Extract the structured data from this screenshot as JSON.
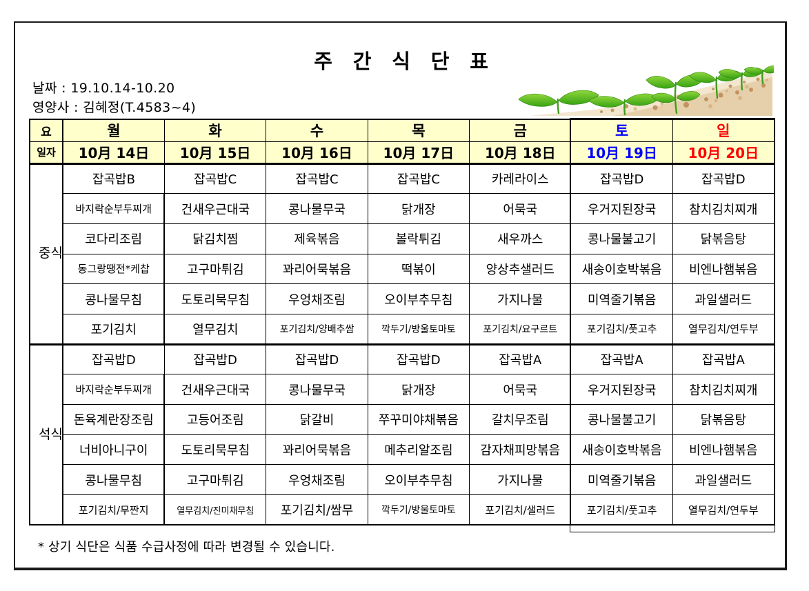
{
  "page": {
    "title": "주 간 식 단 표",
    "date_label": "날짜 : 19.10.14-10.20",
    "dietitian_label": "영양사 : 김혜정(T.4583~4)",
    "footer_note": "* 상기 식단은 식품 수급사정에 따라 변경될 수 있습니다."
  },
  "table": {
    "corner_day_label": "요",
    "corner_date_label": "일자",
    "lunch_label": "중식",
    "dinner_label": "석식",
    "days": [
      {
        "weekday": "월",
        "date": "10月 14日",
        "accent": "#000000",
        "lunch": [
          "잡곡밥B",
          "바지락순부두찌개",
          "코다리조림",
          "동그랑땡전*케찹",
          "콩나물무침",
          "포기김치"
        ],
        "dinner": [
          "잡곡밥D",
          "바지락순부두찌개",
          "돈육계란장조림",
          "너비아니구이",
          "콩나물무침",
          "포기김치/무짠지"
        ]
      },
      {
        "weekday": "화",
        "date": "10月 15日",
        "accent": "#000000",
        "lunch": [
          "잡곡밥C",
          "건새우근대국",
          "닭김치찜",
          "고구마튀김",
          "도토리묵무침",
          "열무김치"
        ],
        "dinner": [
          "잡곡밥D",
          "건새우근대국",
          "고등어조림",
          "도토리묵무침",
          "고구마튀김",
          "열무김치/진미채무침"
        ]
      },
      {
        "weekday": "수",
        "date": "10月 16日",
        "accent": "#000000",
        "lunch": [
          "잡곡밥C",
          "콩나물무국",
          "제육볶음",
          "꽈리어묵볶음",
          "우엉채조림",
          "포기김치/양배추쌈"
        ],
        "dinner": [
          "잡곡밥D",
          "콩나물무국",
          "닭갈비",
          "꽈리어묵볶음",
          "우엉채조림",
          "포기김치/쌈무"
        ]
      },
      {
        "weekday": "목",
        "date": "10月 17日",
        "accent": "#000000",
        "lunch": [
          "잡곡밥C",
          "닭개장",
          "볼락튀김",
          "떡볶이",
          "오이부추무침",
          "깍두기/방울토마토"
        ],
        "dinner": [
          "잡곡밥D",
          "닭개장",
          "쭈꾸미야채볶음",
          "메추리알조림",
          "오이부추무침",
          "깍두기/방울토마토"
        ]
      },
      {
        "weekday": "금",
        "date": "10月 18日",
        "accent": "#000000",
        "lunch": [
          "카레라이스",
          "어묵국",
          "새우까스",
          "양상추샐러드",
          "가지나물",
          "포기김치/요구르트"
        ],
        "dinner": [
          "잡곡밥A",
          "어묵국",
          "갈치무조림",
          "감자채피망볶음",
          "가지나물",
          "포기김치/샐러드"
        ]
      },
      {
        "weekday": "토",
        "date": "10月 19日",
        "accent": "#0000FF",
        "lunch": [
          "잡곡밥D",
          "우거지된장국",
          "콩나물불고기",
          "새송이호박볶음",
          "미역줄기볶음",
          "포기김치/풋고추"
        ],
        "dinner": [
          "잡곡밥A",
          "우거지된장국",
          "콩나물불고기",
          "새송이호박볶음",
          "미역줄기볶음",
          "포기김치/풋고추"
        ]
      },
      {
        "weekday": "일",
        "date": "10月 20日",
        "accent": "#FF0000",
        "lunch": [
          "잡곡밥D",
          "참치김치찌개",
          "닭볶음탕",
          "비엔나햄볶음",
          "과일샐러드",
          "열무김치/연두부"
        ],
        "dinner": [
          "잡곡밥A",
          "참치김치찌개",
          "닭볶음탕",
          "비엔나햄볶음",
          "과일샐러드",
          "열무김치/연두부"
        ]
      }
    ]
  },
  "colors": {
    "header_bg": "#FFFFCC",
    "weekday_default": "#000000",
    "saturday_accent": "#0000FF",
    "sunday_accent": "#FF0000",
    "table_border": "#000000",
    "leaf_green": "#4AAE1E",
    "soil_tan": "#C79B66"
  },
  "decoration": {
    "illustration": "seedlings-growing-from-soil"
  }
}
